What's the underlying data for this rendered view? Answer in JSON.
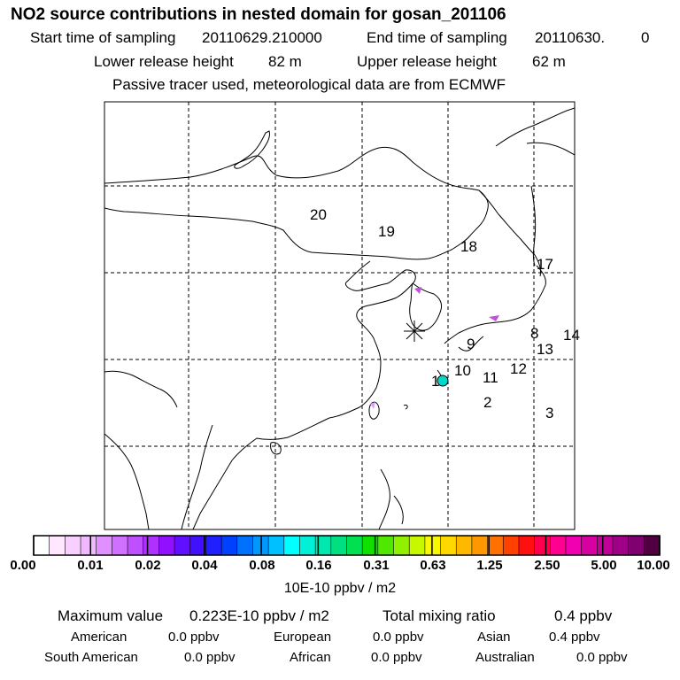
{
  "title": "NO2 source contributions in nested domain for gosan_201106",
  "header": {
    "start_label": "Start time of sampling",
    "start_value": "20110629.210000",
    "end_label": "End time of sampling",
    "end_value": "20110630.",
    "end_suffix": "0",
    "lower_label": "Lower release height",
    "lower_value": "82 m",
    "upper_label": "Upper release height",
    "upper_value": "62 m",
    "tracer_note": "Passive tracer used, meteorological data are from ECMWF"
  },
  "map": {
    "region_labels": [
      "20",
      "19",
      "18",
      "17",
      "9",
      "8",
      "13",
      "14",
      "10",
      "11",
      "12",
      "1",
      "2",
      "3"
    ],
    "receptor_color": "#00d8c8",
    "plume_color": "#c050e0"
  },
  "colorbar": {
    "colors": [
      "#ffffff",
      "#ffe8ff",
      "#f8d0ff",
      "#f0b8ff",
      "#e090ff",
      "#d070ff",
      "#c050ff",
      "#b030ff",
      "#9010ff",
      "#6010ff",
      "#4010ff",
      "#2020ff",
      "#0040ff",
      "#0070ff",
      "#0098ff",
      "#00c0ff",
      "#00ffff",
      "#00f0d8",
      "#00e8b0",
      "#00e080",
      "#00e050",
      "#10e000",
      "#50e800",
      "#90f000",
      "#c8f800",
      "#f8f800",
      "#ffd800",
      "#ffb800",
      "#ff9800",
      "#ff7000",
      "#ff4000",
      "#ff1010",
      "#ff0050",
      "#ff0090",
      "#f000b0",
      "#d800a0",
      "#c00098",
      "#a00088",
      "#800070",
      "#500040"
    ],
    "tick_labels": [
      "0.00",
      "0.01",
      "0.02",
      "0.04",
      "0.08",
      "0.16",
      "0.31",
      "0.63",
      "1.25",
      "2.50",
      "5.00",
      "10.00"
    ],
    "unit": "10E-10 ppbv / m2"
  },
  "summary": {
    "max_label": "Maximum value",
    "max_value": "0.223E-10 ppbv / m2",
    "total_label": "Total mixing ratio",
    "total_value": "0.4 ppbv",
    "regions": [
      {
        "name": "American",
        "value": "0.0 ppbv"
      },
      {
        "name": "European",
        "value": "0.0 ppbv"
      },
      {
        "name": "Asian",
        "value": "0.4 ppbv"
      },
      {
        "name": "South American",
        "value": "0.0 ppbv"
      },
      {
        "name": "African",
        "value": "0.0 ppbv"
      },
      {
        "name": "Australian",
        "value": "0.0 ppbv"
      }
    ]
  }
}
